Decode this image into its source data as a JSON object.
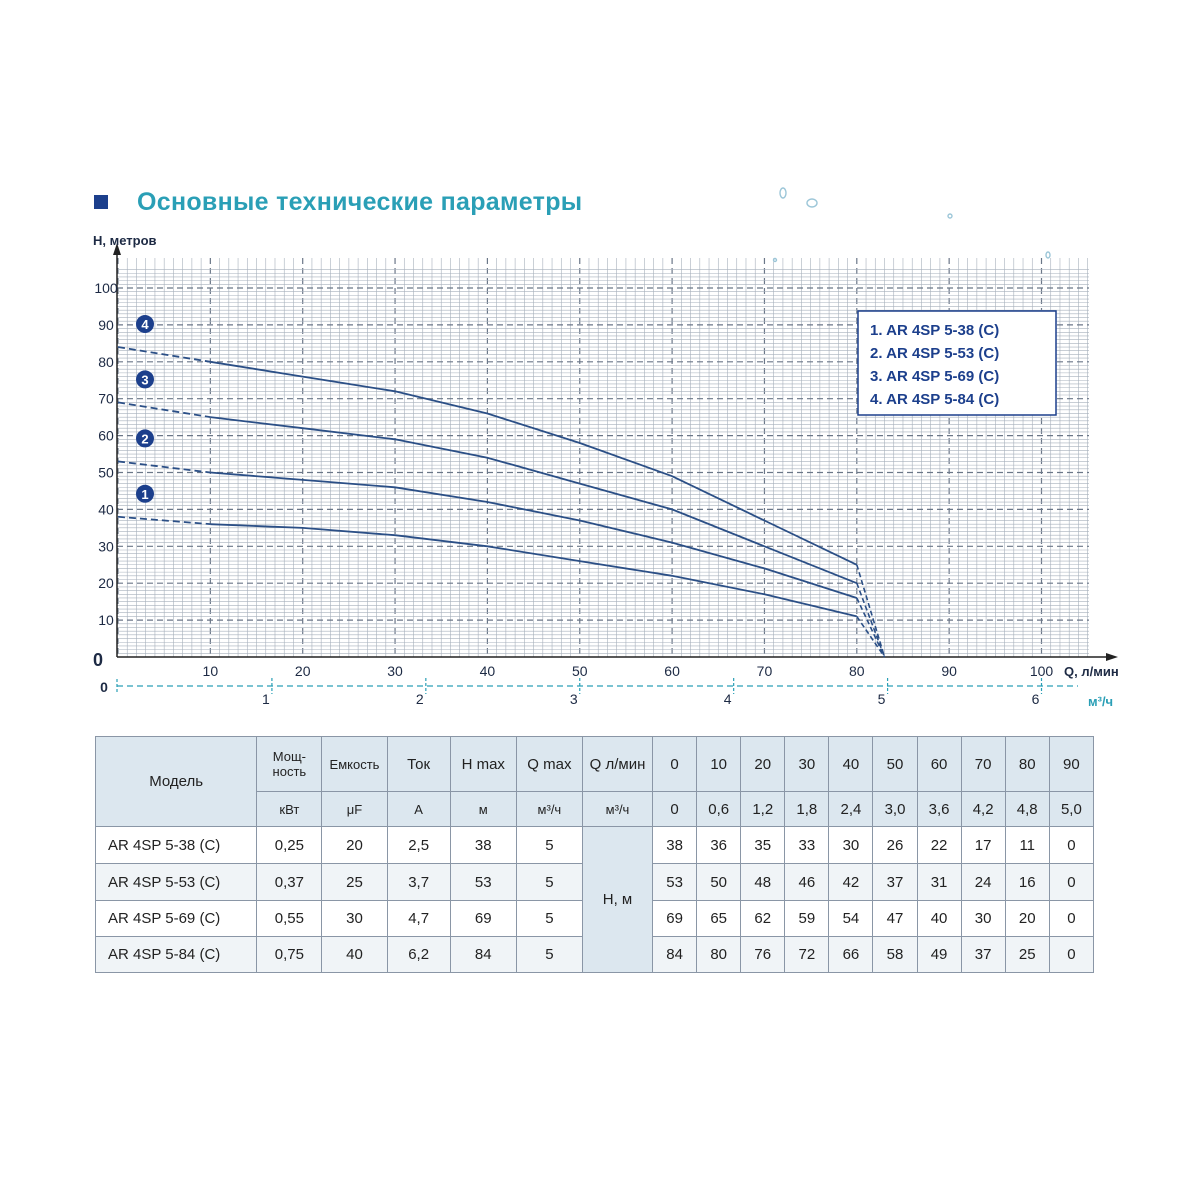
{
  "header": {
    "title": "Основные технические параметры"
  },
  "chart_data": {
    "type": "line",
    "ylabel": "H, метров",
    "xlabel": "Q, л/мин",
    "xlabel2": "м³/ч",
    "ylim": [
      0,
      105
    ],
    "xlim": [
      0,
      105
    ],
    "yticks": [
      "0",
      "10",
      "20",
      "30",
      "40",
      "50",
      "60",
      "70",
      "80",
      "90",
      "100"
    ],
    "xticks": [
      "10",
      "20",
      "30",
      "40",
      "50",
      "60",
      "70",
      "80",
      "90",
      "100"
    ],
    "x_zero_label": "0",
    "x2_zero_label": "0",
    "x2ticks": [
      "1",
      "2",
      "3",
      "4",
      "5",
      "6"
    ],
    "x": [
      0,
      10,
      20,
      30,
      40,
      50,
      60,
      70,
      80
    ],
    "x_end": 83,
    "colors": {
      "line": "#2b4f86",
      "grid": "#8a96a6",
      "marker": "#1c3f8c",
      "accent": "#2a9fb6"
    },
    "series": [
      {
        "name": "AR 4SP 5-38 (C)",
        "marker": "1",
        "values": [
          38,
          36,
          35,
          33,
          30,
          26,
          22,
          17,
          11
        ]
      },
      {
        "name": "AR 4SP 5-53 (C)",
        "marker": "2",
        "values": [
          53,
          50,
          48,
          46,
          42,
          37,
          31,
          24,
          16
        ]
      },
      {
        "name": "AR 4SP 5-69 (C)",
        "marker": "3",
        "values": [
          69,
          65,
          62,
          59,
          54,
          47,
          40,
          30,
          20
        ]
      },
      {
        "name": "AR 4SP 5-84 (C)",
        "marker": "4",
        "values": [
          84,
          80,
          76,
          72,
          66,
          58,
          49,
          37,
          25
        ]
      }
    ],
    "legend": {
      "placement": "top-right",
      "items": [
        "1.  AR 4SP 5-38 (C)",
        "2.  AR 4SP 5-53 (C)",
        "3.  AR 4SP 5-69 (C)",
        "4.  AR 4SP 5-84 (C)"
      ]
    }
  },
  "table": {
    "model_header": "Модель",
    "params": [
      {
        "label": "Мощ-ность",
        "unit": "кВт"
      },
      {
        "label": "Емкость",
        "unit": "μF"
      },
      {
        "label": "Ток",
        "unit": "A"
      },
      {
        "label": "H max",
        "unit": "м"
      },
      {
        "label": "Q max",
        "unit": "м³/ч"
      },
      {
        "label": "Q л/мин",
        "unit": "м³/ч"
      }
    ],
    "flow_lmin": [
      "0",
      "10",
      "20",
      "30",
      "40",
      "50",
      "60",
      "70",
      "80",
      "90"
    ],
    "flow_m3h": [
      "0",
      "0,6",
      "1,2",
      "1,8",
      "2,4",
      "3,0",
      "3,6",
      "4,2",
      "4,8",
      "5,0"
    ],
    "head_label": "H, м",
    "rows": [
      {
        "model": "AR 4SP 5-38 (C)",
        "power": "0,25",
        "capacity": "20",
        "current": "2,5",
        "hmax": "38",
        "qmax": "5",
        "heads": [
          "38",
          "36",
          "35",
          "33",
          "30",
          "26",
          "22",
          "17",
          "11",
          "0"
        ]
      },
      {
        "model": "AR 4SP 5-53 (C)",
        "power": "0,37",
        "capacity": "25",
        "current": "3,7",
        "hmax": "53",
        "qmax": "5",
        "heads": [
          "53",
          "50",
          "48",
          "46",
          "42",
          "37",
          "31",
          "24",
          "16",
          "0"
        ]
      },
      {
        "model": "AR 4SP 5-69 (C)",
        "power": "0,55",
        "capacity": "30",
        "current": "4,7",
        "hmax": "69",
        "qmax": "5",
        "heads": [
          "69",
          "65",
          "62",
          "59",
          "54",
          "47",
          "40",
          "30",
          "20",
          "0"
        ]
      },
      {
        "model": "AR 4SP 5-84 (C)",
        "power": "0,75",
        "capacity": "40",
        "current": "6,2",
        "hmax": "84",
        "qmax": "5",
        "heads": [
          "84",
          "80",
          "76",
          "72",
          "66",
          "58",
          "49",
          "37",
          "25",
          "0"
        ]
      }
    ]
  }
}
